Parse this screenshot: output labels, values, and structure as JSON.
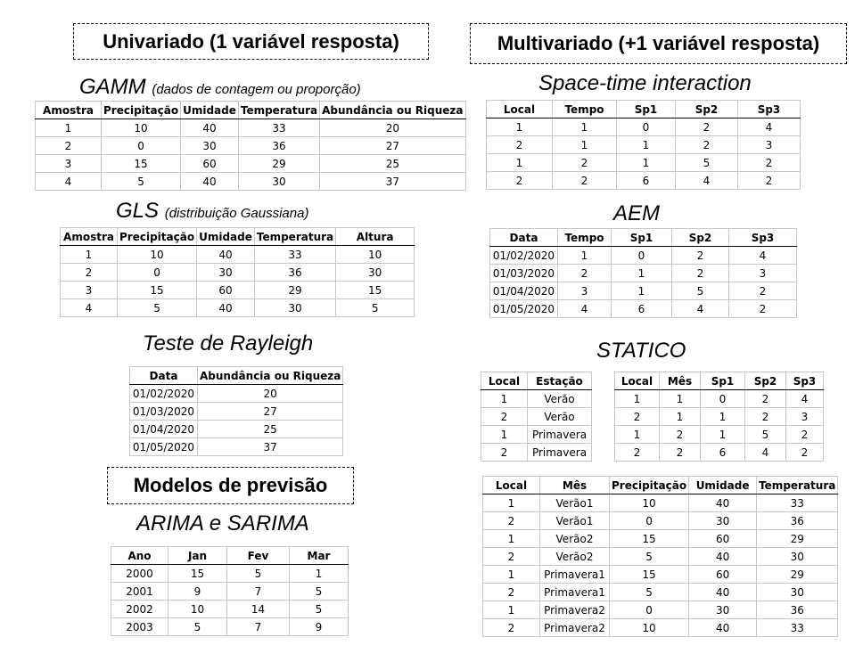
{
  "headers": {
    "univariado": "Univariado (1 variável resposta)",
    "multivariado": "Multivariado (+1 variável resposta)",
    "previsao": "Modelos de previsão"
  },
  "gamm": {
    "title": "GAMM",
    "subtitle": "(dados de contagem ou proporção)",
    "columns": [
      "Amostra",
      "Precipitação",
      "Umidade",
      "Temperatura",
      "Abundância ou Riqueza"
    ],
    "rows": [
      [
        "1",
        "10",
        "40",
        "33",
        "20"
      ],
      [
        "2",
        "0",
        "30",
        "36",
        "27"
      ],
      [
        "3",
        "15",
        "60",
        "29",
        "25"
      ],
      [
        "4",
        "5",
        "40",
        "30",
        "37"
      ]
    ]
  },
  "gls": {
    "title": "GLS",
    "subtitle": "(distribuição Gaussiana)",
    "columns": [
      "Amostra",
      "Precipitação",
      "Umidade",
      "Temperatura",
      "Altura"
    ],
    "rows": [
      [
        "1",
        "10",
        "40",
        "33",
        "10"
      ],
      [
        "2",
        "0",
        "30",
        "36",
        "30"
      ],
      [
        "3",
        "15",
        "60",
        "29",
        "15"
      ],
      [
        "4",
        "5",
        "40",
        "30",
        "5"
      ]
    ]
  },
  "rayleigh": {
    "title": "Teste de Rayleigh",
    "columns": [
      "Data",
      "Abundância ou Riqueza"
    ],
    "rows": [
      [
        "01/02/2020",
        "20"
      ],
      [
        "01/03/2020",
        "27"
      ],
      [
        "01/04/2020",
        "25"
      ],
      [
        "01/05/2020",
        "37"
      ]
    ]
  },
  "arima": {
    "title": "ARIMA e SARIMA",
    "columns": [
      "Ano",
      "Jan",
      "Fev",
      "Mar"
    ],
    "rows": [
      [
        "2000",
        "15",
        "5",
        "1"
      ],
      [
        "2001",
        "9",
        "7",
        "5"
      ],
      [
        "2002",
        "10",
        "14",
        "5"
      ],
      [
        "2003",
        "5",
        "7",
        "9"
      ]
    ]
  },
  "spacetime": {
    "title": "Space-time interaction",
    "columns": [
      "Local",
      "Tempo",
      "Sp1",
      "Sp2",
      "Sp3"
    ],
    "rows": [
      [
        "1",
        "1",
        "0",
        "2",
        "4"
      ],
      [
        "2",
        "1",
        "1",
        "2",
        "3"
      ],
      [
        "1",
        "2",
        "1",
        "5",
        "2"
      ],
      [
        "2",
        "2",
        "6",
        "4",
        "2"
      ]
    ]
  },
  "aem": {
    "title": "AEM",
    "columns": [
      "Data",
      "Tempo",
      "Sp1",
      "Sp2",
      "Sp3"
    ],
    "rows": [
      [
        "01/02/2020",
        "1",
        "0",
        "2",
        "4"
      ],
      [
        "01/03/2020",
        "2",
        "1",
        "2",
        "3"
      ],
      [
        "01/04/2020",
        "3",
        "1",
        "5",
        "2"
      ],
      [
        "01/05/2020",
        "4",
        "6",
        "4",
        "2"
      ]
    ]
  },
  "statico": {
    "title": "STATICO",
    "left": {
      "columns": [
        "Local",
        "Estação"
      ],
      "rows": [
        [
          "1",
          "Verão"
        ],
        [
          "2",
          "Verão"
        ],
        [
          "1",
          "Primavera"
        ],
        [
          "2",
          "Primavera"
        ]
      ]
    },
    "right": {
      "columns": [
        "Local",
        "Mês",
        "Sp1",
        "Sp2",
        "Sp3"
      ],
      "rows": [
        [
          "1",
          "1",
          "0",
          "2",
          "4"
        ],
        [
          "2",
          "1",
          "1",
          "2",
          "3"
        ],
        [
          "1",
          "2",
          "1",
          "5",
          "2"
        ],
        [
          "2",
          "2",
          "6",
          "4",
          "2"
        ]
      ]
    },
    "bottom": {
      "columns": [
        "Local",
        "Mês",
        "Precipitação",
        "Umidade",
        "Temperatura"
      ],
      "rows": [
        [
          "1",
          "Verão1",
          "10",
          "40",
          "33"
        ],
        [
          "2",
          "Verão1",
          "0",
          "30",
          "36"
        ],
        [
          "1",
          "Verão2",
          "15",
          "60",
          "29"
        ],
        [
          "2",
          "Verão2",
          "5",
          "40",
          "30"
        ],
        [
          "1",
          "Primavera1",
          "15",
          "60",
          "29"
        ],
        [
          "2",
          "Primavera1",
          "5",
          "40",
          "30"
        ],
        [
          "1",
          "Primavera2",
          "0",
          "30",
          "36"
        ],
        [
          "2",
          "Primavera2",
          "10",
          "40",
          "33"
        ]
      ]
    }
  }
}
